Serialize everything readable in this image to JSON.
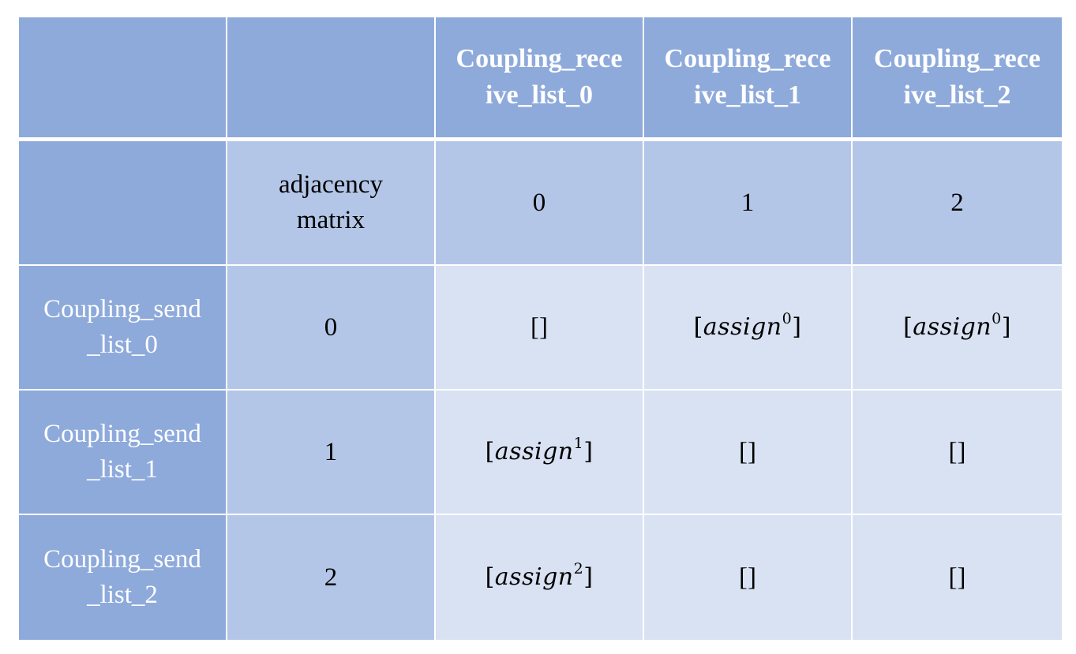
{
  "table": {
    "header_row": {
      "corner_label": "",
      "blank_label": "",
      "columns": [
        {
          "line1": "Coupling_rece",
          "line2": "ive_list_0"
        },
        {
          "line1": "Coupling_rece",
          "line2": "ive_list_1"
        },
        {
          "line1": "Coupling_rece",
          "line2": "ive_list_2"
        }
      ]
    },
    "index_row": {
      "row_label": "",
      "matrix_label_line1": "adjacency",
      "matrix_label_line2": "matrix",
      "indices": [
        "0",
        "1",
        "2"
      ]
    },
    "rows": [
      {
        "line1": "Coupling_send",
        "line2": "_list_0",
        "index": "0",
        "cells": [
          {
            "text": "[]",
            "var": "",
            "sup": ""
          },
          {
            "text": "",
            "var": "assign",
            "sup": "0"
          },
          {
            "text": "",
            "var": "assign",
            "sup": "0"
          }
        ]
      },
      {
        "line1": "Coupling_send",
        "line2": "_list_1",
        "index": "1",
        "cells": [
          {
            "text": "",
            "var": "assign",
            "sup": "1"
          },
          {
            "text": "[]",
            "var": "",
            "sup": ""
          },
          {
            "text": "[]",
            "var": "",
            "sup": ""
          }
        ]
      },
      {
        "line1": "Coupling_send",
        "line2": "_list_2",
        "index": "2",
        "cells": [
          {
            "text": "",
            "var": "assign",
            "sup": "2"
          },
          {
            "text": "[]",
            "var": "",
            "sup": ""
          },
          {
            "text": "[]",
            "var": "",
            "sup": ""
          }
        ]
      }
    ],
    "colors": {
      "dark": "#8eaadb",
      "mid": "#b4c6e7",
      "light": "#d9e2f3",
      "grid_lines": "#ffffff"
    }
  }
}
